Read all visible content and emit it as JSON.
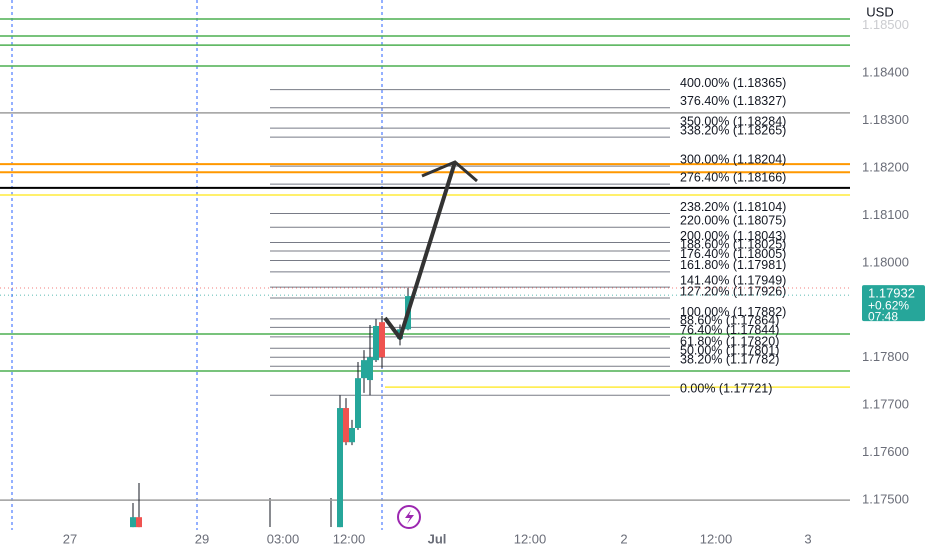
{
  "chart_data": {
    "type": "candlestick",
    "currency": "USD",
    "ylim": [
      1.17437,
      1.18554
    ],
    "yticks": [
      {
        "value": 1.185,
        "label": "1.18500"
      },
      {
        "value": 1.184,
        "label": "1.18400"
      },
      {
        "value": 1.183,
        "label": "1.18300"
      },
      {
        "value": 1.182,
        "label": "1.18200"
      },
      {
        "value": 1.181,
        "label": "1.18100"
      },
      {
        "value": 1.18,
        "label": "1.18000"
      },
      {
        "value": 1.178,
        "label": "1.17800"
      },
      {
        "value": 1.177,
        "label": "1.17700"
      },
      {
        "value": 1.176,
        "label": "1.17600"
      },
      {
        "value": 1.175,
        "label": "1.17500"
      }
    ],
    "x_labels": [
      "27",
      "29",
      "03:00",
      "12:00",
      "Jul",
      "12:00",
      "2",
      "12:00",
      "3"
    ],
    "open": [
      1.17443,
      1.17464,
      1.17443,
      1.17694,
      1.17622,
      1.17652,
      1.17757,
      1.17753,
      1.17795,
      1.17875,
      1.1784,
      1.1786
    ],
    "high": [
      1.17494,
      1.17536,
      1.17721,
      1.17715,
      1.17669,
      1.17791,
      1.17816,
      1.17869,
      1.17882,
      1.17888,
      1.1787,
      1.17947
    ],
    "low": [
      1.17443,
      1.17443,
      1.17443,
      1.17616,
      1.17616,
      1.17648,
      1.17726,
      1.17721,
      1.17791,
      1.17778,
      1.17826,
      1.17858
    ],
    "close": [
      1.17464,
      1.17443,
      1.17694,
      1.17622,
      1.17652,
      1.17757,
      1.17795,
      1.17801,
      1.17867,
      1.17801,
      1.1786,
      1.1793
    ],
    "up_color": "#26a69a",
    "down_color": "#ef5350",
    "fib_levels": [
      {
        "value": 1.18365,
        "label": "400.00% (1.18365)"
      },
      {
        "value": 1.18327,
        "label": "376.40% (1.18327)"
      },
      {
        "value": 1.18284,
        "label": "350.00% (1.18284)"
      },
      {
        "value": 1.18265,
        "label": "338.20% (1.18265)"
      },
      {
        "value": 1.18204,
        "label": "300.00% (1.18204)"
      },
      {
        "value": 1.18166,
        "label": "276.40% (1.18166)"
      },
      {
        "value": 1.18104,
        "label": "238.20% (1.18104)"
      },
      {
        "value": 1.18075,
        "label": "220.00% (1.18075)"
      },
      {
        "value": 1.18043,
        "label": "200.00% (1.18043)"
      },
      {
        "value": 1.18025,
        "label": "188.60% (1.18025)"
      },
      {
        "value": 1.18005,
        "label": "176.40% (1.18005)"
      },
      {
        "value": 1.17981,
        "label": "161.80% (1.17981)"
      },
      {
        "value": 1.17949,
        "label": "141.40% (1.17949)"
      },
      {
        "value": 1.17926,
        "label": "127.20% (1.17926)"
      },
      {
        "value": 1.17882,
        "label": "100.00% (1.17882)"
      },
      {
        "value": 1.17864,
        "label": "88.60% (1.17864)"
      },
      {
        "value": 1.17844,
        "label": "76.40% (1.17844)"
      },
      {
        "value": 1.1782,
        "label": "61.80% (1.17820)"
      },
      {
        "value": 1.17801,
        "label": "50.00% (1.17801)"
      },
      {
        "value": 1.17782,
        "label": "38.20% (1.17782)"
      },
      {
        "value": 1.17721,
        "label": "0.00% (1.17721)"
      }
    ],
    "hlines": [
      {
        "value": 1.18514,
        "color": "#4caf50"
      },
      {
        "value": 1.18478,
        "color": "#4caf50"
      },
      {
        "value": 1.18459,
        "color": "#4caf50"
      },
      {
        "value": 1.18415,
        "color": "#4caf50"
      },
      {
        "value": 1.18316,
        "color": "#9e9e9e"
      },
      {
        "value": 1.18208,
        "color": "#ff9800"
      },
      {
        "value": 1.18191,
        "color": "#ff9800"
      },
      {
        "value": 1.18158,
        "color": "#000000"
      },
      {
        "value": 1.18143,
        "color": "#ffeb3b"
      },
      {
        "value": 1.1785,
        "color": "#4caf50"
      },
      {
        "value": 1.17772,
        "color": "#4caf50"
      },
      {
        "value": 1.175,
        "color": "#9e9e9e"
      }
    ],
    "support_line": {
      "value": 1.17738,
      "color": "#ffeb3b"
    },
    "last_price": 1.17932,
    "change": "+0.62%",
    "countdown": "07:48"
  }
}
